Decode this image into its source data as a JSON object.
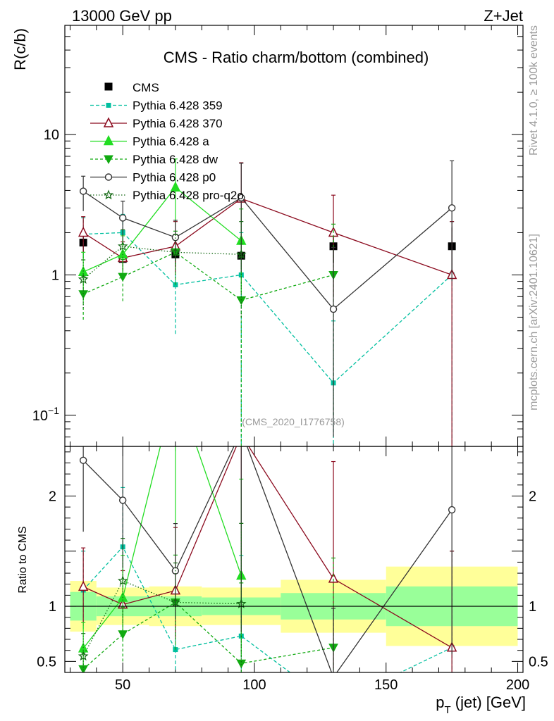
{
  "chart_data": {
    "type": "line",
    "header_left": "13000 GeV pp",
    "header_right": "Z+Jet",
    "title": "CMS - Ratio charm/bottom (combined)",
    "watermark": "(CMS_2020_I1776758)",
    "side_label_top": "Rivet 4.1.0, ≥ 100k events",
    "side_label_bottom": "mcplots.cern.ch [arXiv:2401.10621]",
    "ylabel": "R(c/b)",
    "ratio_ylabel": "Ratio to CMS",
    "xlabel_main": "p",
    "xlabel_sub": "T",
    "xlabel_rest": " (jet) [GeV]",
    "xlim": [
      28,
      202
    ],
    "ylim": [
      0.06,
      60
    ],
    "ratio_ylim": [
      0.4,
      2.45
    ],
    "x_ticks": [
      {
        "value": 50,
        "label": "50"
      },
      {
        "value": 100,
        "label": "100"
      },
      {
        "value": 150,
        "label": "150"
      },
      {
        "value": 200,
        "label": "200"
      }
    ],
    "y_ticks": [
      {
        "value": 0.1,
        "label": "10",
        "exp": "−1"
      },
      {
        "value": 1,
        "label": "1",
        "exp": ""
      },
      {
        "value": 10,
        "label": "10",
        "exp": ""
      }
    ],
    "ratio_ticks": [
      {
        "value": 0.5,
        "label": "0.5"
      },
      {
        "value": 1,
        "label": "1"
      },
      {
        "value": 2,
        "label": "2"
      }
    ],
    "data": {
      "name": "CMS",
      "x": [
        35,
        50,
        70,
        95,
        130,
        175
      ],
      "x_edges": [
        30,
        40,
        60,
        80,
        110,
        150,
        200
      ],
      "values": [
        1.7,
        1.3,
        1.4,
        1.37,
        1.6,
        1.6
      ],
      "stat_rel": [
        0.13,
        0.09,
        0.09,
        0.08,
        0.12,
        0.18
      ],
      "total_rel": [
        0.23,
        0.17,
        0.18,
        0.17,
        0.24,
        0.36
      ]
    },
    "series": [
      {
        "name": "Pythia 6.428 359",
        "color": "#00bf9f",
        "dash": "5,3",
        "marker": "square",
        "values": [
          1.95,
          2.0,
          0.85,
          1.0,
          0.17,
          1.0
        ],
        "err_lo": [
          0.6,
          0.7,
          0.47,
          1.0,
          0.14,
          1.0
        ],
        "err_hi": [
          0.6,
          0.7,
          0.6,
          1.0,
          0.3,
          1.4
        ]
      },
      {
        "name": "Pythia 6.428 370",
        "color": "#8b0a1e",
        "dash": "",
        "marker": "triangle-open",
        "values": [
          2.0,
          1.32,
          1.6,
          3.5,
          2.0,
          1.0
        ],
        "err_lo": [
          0.6,
          0.4,
          0.6,
          2.2,
          1.3,
          0.97
        ],
        "err_hi": [
          0.6,
          0.4,
          0.8,
          2.8,
          1.7,
          1.4
        ]
      },
      {
        "name": "Pythia 6.428 a",
        "color": "#22dd22",
        "dash": "",
        "marker": "triangle",
        "values": [
          1.05,
          1.4,
          4.2,
          1.75,
          null,
          null
        ],
        "err_lo": [
          0.4,
          0.5,
          2.0,
          1.0,
          0,
          0
        ],
        "err_hi": [
          0.4,
          0.5,
          2.5,
          1.2,
          0,
          0
        ]
      },
      {
        "name": "Pythia 6.428 dw",
        "color": "#11aa11",
        "dash": "4,3",
        "marker": "triangle-down",
        "values": [
          0.73,
          0.97,
          1.45,
          0.66,
          1.0,
          null
        ],
        "err_lo": [
          0.25,
          0.32,
          0.6,
          0.6,
          0.9,
          0
        ],
        "err_hi": [
          0.25,
          0.32,
          0.6,
          1.0,
          1.3,
          0
        ]
      },
      {
        "name": "Pythia 6.428 p0",
        "color": "#333333",
        "dash": "",
        "marker": "circle-open",
        "values": [
          3.95,
          2.55,
          1.85,
          3.55,
          0.57,
          3.0
        ],
        "err_lo": [
          1.1,
          0.8,
          0.6,
          2.5,
          0.5,
          2.1
        ],
        "err_hi": [
          1.1,
          0.8,
          0.6,
          2.7,
          1.0,
          3.5
        ]
      },
      {
        "name": "Pythia 6.428 pro-q2o",
        "color": "#116611",
        "dash": "1.5,2.5",
        "marker": "star",
        "values": [
          0.93,
          1.6,
          1.45,
          1.4,
          null,
          null
        ],
        "err_lo": [
          0.35,
          0.5,
          0.5,
          0.9,
          0,
          0
        ],
        "err_hi": [
          0.35,
          0.5,
          0.5,
          1.0,
          0,
          0
        ]
      }
    ]
  }
}
